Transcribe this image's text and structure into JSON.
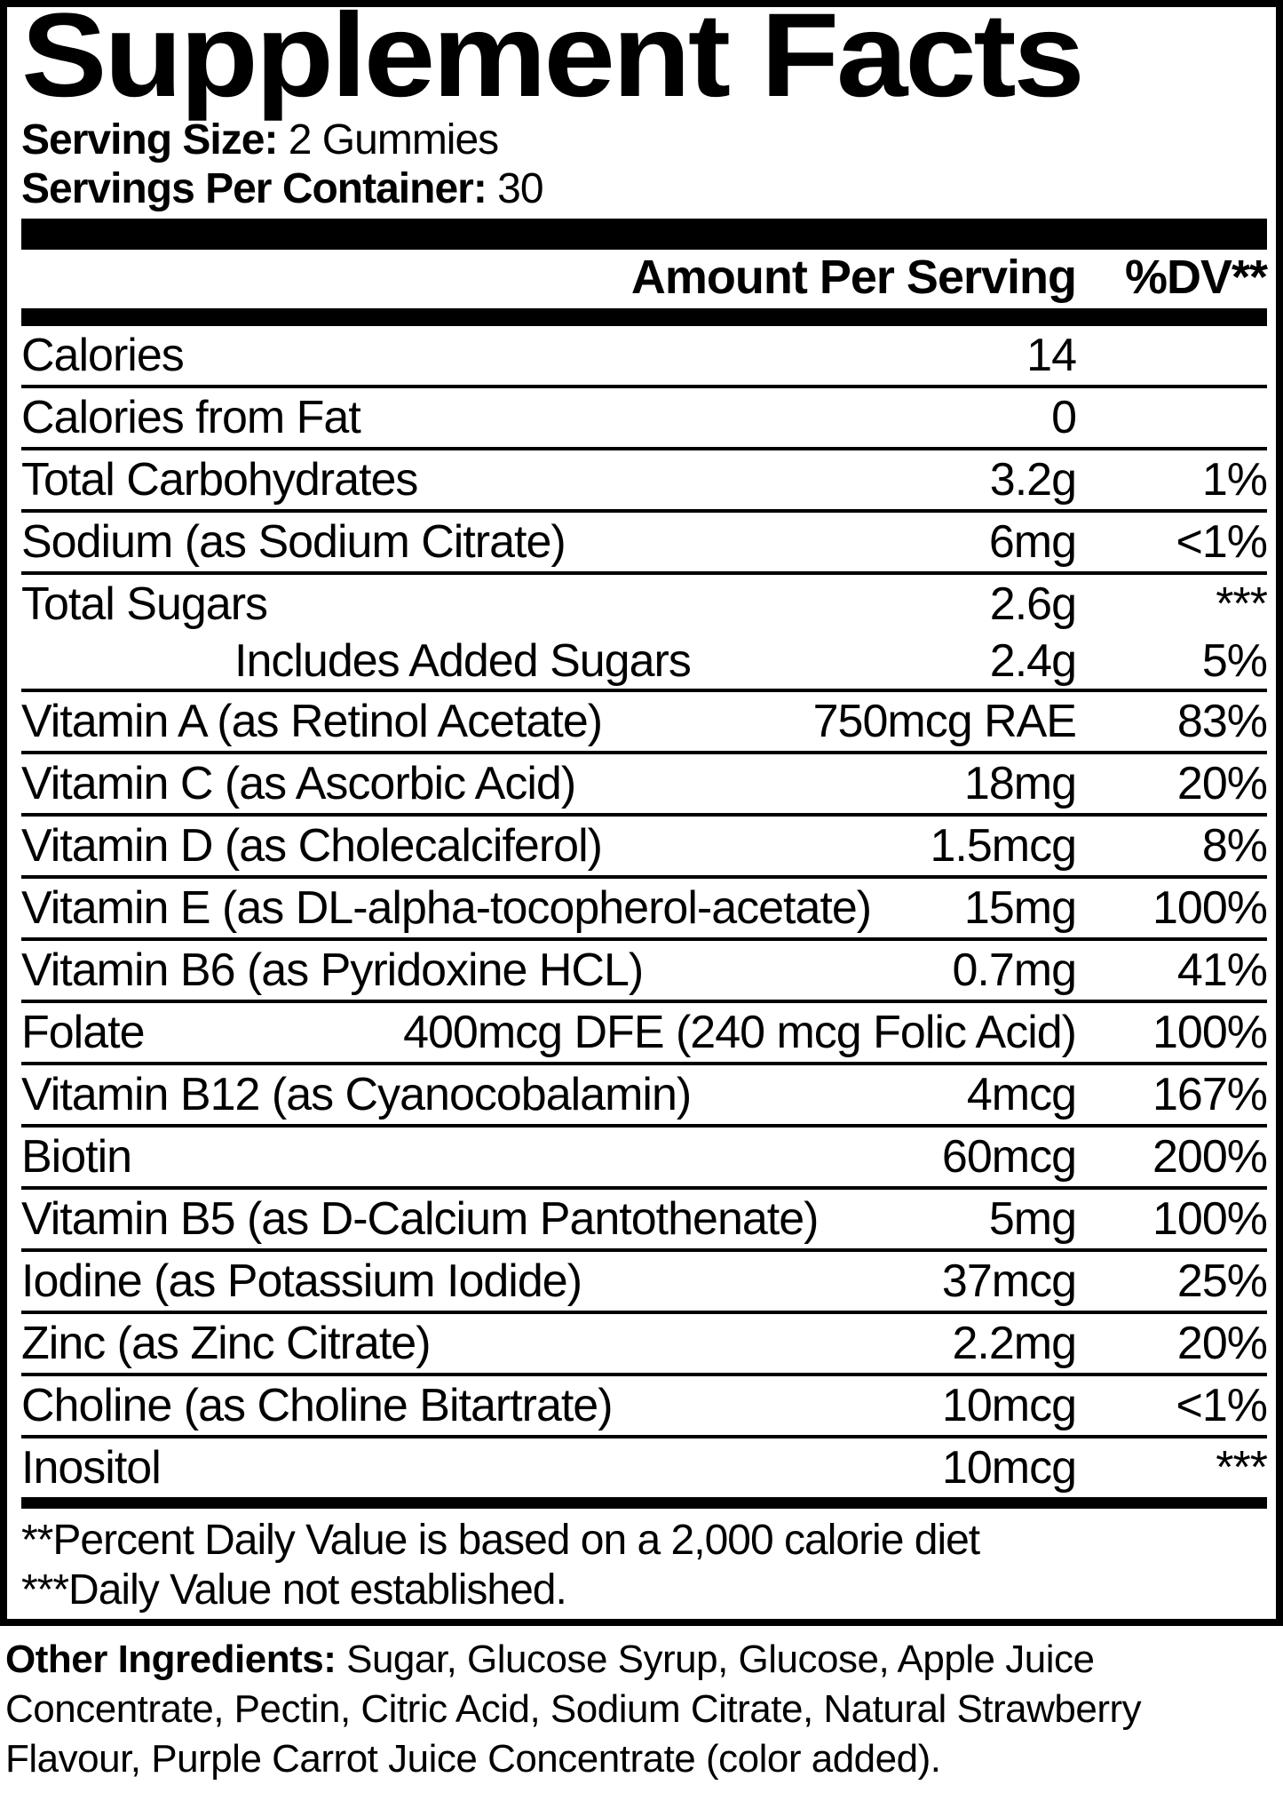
{
  "colors": {
    "text": "#000000",
    "background": "#ffffff"
  },
  "title": "Supplement Facts",
  "serving": {
    "size_label": "Serving Size:",
    "size_value": " 2 Gummies",
    "container_label": "Servings Per Container:",
    "container_value": " 30"
  },
  "header": {
    "amount_label": "Amount Per Serving",
    "dv_label": "%DV**"
  },
  "rows": [
    {
      "name": "Calories",
      "amount": "14",
      "dv": ""
    },
    {
      "name": "Calories from Fat",
      "amount": "0",
      "dv": ""
    },
    {
      "name": "Total Carbohydrates",
      "amount": "3.2g",
      "dv": "1%"
    },
    {
      "name": "Sodium (as Sodium Citrate)",
      "amount": "6mg",
      "dv": "<1%"
    },
    {
      "name": "Total Sugars",
      "amount": "2.6g",
      "dv": "***"
    },
    {
      "name": "Includes Added Sugars",
      "amount": "2.4g",
      "dv": "5%"
    },
    {
      "name": "Vitamin A (as Retinol Acetate)",
      "amount": "750mcg RAE",
      "dv": "83%"
    },
    {
      "name": "Vitamin C (as Ascorbic Acid)",
      "amount": "18mg",
      "dv": "20%"
    },
    {
      "name": "Vitamin D (as Cholecalciferol)",
      "amount": "1.5mcg",
      "dv": "8%"
    },
    {
      "name": "Vitamin E (as DL-alpha-tocopherol-acetate)",
      "amount": "15mg",
      "dv": "100%"
    },
    {
      "name": "Vitamin B6 (as Pyridoxine HCL)",
      "amount": "0.7mg",
      "dv": "41%"
    },
    {
      "name": "Folate",
      "amount": "400mcg DFE (240 mcg Folic Acid)",
      "dv": "100%"
    },
    {
      "name": "Vitamin B12 (as Cyanocobalamin)",
      "amount": "4mcg",
      "dv": "167%"
    },
    {
      "name": "Biotin",
      "amount": "60mcg",
      "dv": "200%"
    },
    {
      "name": "Vitamin B5 (as D-Calcium Pantothenate)",
      "amount": "5mg",
      "dv": "100%"
    },
    {
      "name": "Iodine (as Potassium Iodide)",
      "amount": "37mcg",
      "dv": "25%"
    },
    {
      "name": "Zinc (as Zinc Citrate)",
      "amount": "2.2mg",
      "dv": "20%"
    },
    {
      "name": "Choline (as Choline Bitartrate)",
      "amount": "10mcg",
      "dv": "<1%"
    },
    {
      "name": "Inositol",
      "amount": "10mcg",
      "dv": "***"
    }
  ],
  "footnotes": {
    "line1": "**Percent Daily Value is based on a 2,000 calorie diet",
    "line2": "***Daily Value not established."
  },
  "other_ingredients": {
    "label": "Other Ingredients:",
    "text": " Sugar, Glucose Syrup, Glucose, Apple Juice Concentrate, Pectin, Citric Acid, Sodium Citrate, Natural Strawberry Flavour, Purple Carrot Juice Concentrate (color added)."
  }
}
